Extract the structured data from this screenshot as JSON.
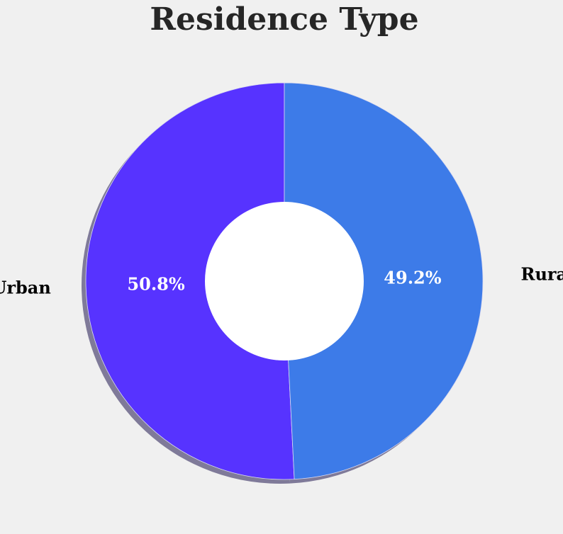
{
  "chart_data": {
    "type": "pie",
    "style": "donut",
    "title": "Residence Type",
    "categories": [
      "Urban",
      "Rural"
    ],
    "values": [
      50.8,
      49.2
    ],
    "value_labels": [
      "50.8%",
      "49.2%"
    ],
    "colors": [
      "#5733ff",
      "#3d7be8"
    ],
    "hole_color": "#ffffff",
    "shadow_color": "#7f7a99",
    "background": "#f0f0f0",
    "start": "top",
    "direction": "counter-clockwise",
    "legend": "none"
  }
}
